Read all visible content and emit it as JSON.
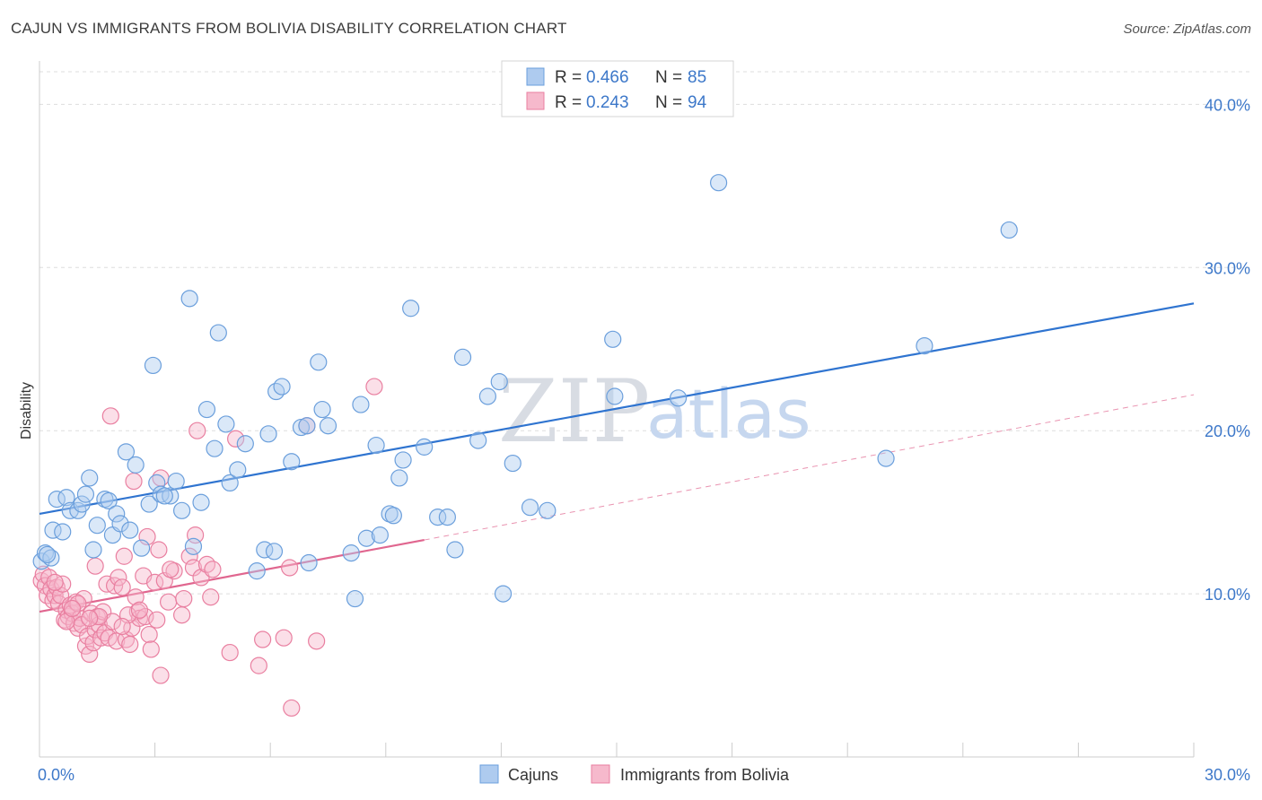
{
  "header": {
    "title": "CAJUN VS IMMIGRANTS FROM BOLIVIA DISABILITY CORRELATION CHART",
    "source": "Source: ZipAtlas.com"
  },
  "watermark": {
    "zip": "ZIP",
    "atlas": "atlas"
  },
  "colors": {
    "blue_fill": "#aecbef",
    "blue_stroke": "#6b9fdc",
    "blue_line": "#2f74d0",
    "pink_fill": "#f6b9cc",
    "pink_stroke": "#e97fa0",
    "pink_line": "#e0668f",
    "grid": "#dddddd",
    "tick_label": "#3d78c9"
  },
  "chart_data": {
    "type": "scatter",
    "ylabel": "Disability",
    "xlim": [
      0,
      30
    ],
    "ylim": [
      0,
      42
    ],
    "x_tick_labels": {
      "min": "0.0%",
      "max": "30.0%"
    },
    "y_ticks": [
      {
        "value": 10,
        "label": "10.0%"
      },
      {
        "value": 20,
        "label": "20.0%"
      },
      {
        "value": 30,
        "label": "30.0%"
      },
      {
        "value": 40,
        "label": "40.0%"
      }
    ],
    "grid": "horizontal dashed",
    "legend": {
      "placement": "top-center",
      "rows": [
        {
          "r_label": "R =",
          "r_value": "0.466",
          "n_label": "N =",
          "n_value": "85"
        },
        {
          "r_label": "R =",
          "r_value": "0.243",
          "n_label": "N =",
          "n_value": "94"
        }
      ]
    },
    "series": [
      {
        "name": "Cajuns",
        "trend": {
          "x0": 0,
          "y0": 14.9,
          "x1": 30,
          "y1": 27.8
        },
        "points": [
          [
            0.05,
            12.0
          ],
          [
            0.15,
            12.5
          ],
          [
            0.3,
            12.2
          ],
          [
            0.35,
            13.9
          ],
          [
            0.45,
            15.8
          ],
          [
            0.6,
            13.8
          ],
          [
            0.7,
            15.9
          ],
          [
            0.8,
            15.1
          ],
          [
            1.0,
            15.1
          ],
          [
            1.1,
            15.5
          ],
          [
            1.3,
            17.1
          ],
          [
            1.4,
            12.7
          ],
          [
            1.5,
            14.2
          ],
          [
            1.7,
            15.8
          ],
          [
            1.8,
            15.7
          ],
          [
            1.9,
            13.6
          ],
          [
            2.0,
            14.9
          ],
          [
            2.1,
            14.3
          ],
          [
            2.25,
            18.7
          ],
          [
            2.35,
            13.9
          ],
          [
            2.5,
            17.9
          ],
          [
            2.65,
            12.8
          ],
          [
            2.85,
            15.5
          ],
          [
            2.95,
            24.0
          ],
          [
            3.05,
            16.8
          ],
          [
            3.15,
            16.1
          ],
          [
            3.4,
            16.0
          ],
          [
            3.55,
            16.9
          ],
          [
            3.7,
            15.1
          ],
          [
            3.9,
            28.1
          ],
          [
            4.0,
            12.9
          ],
          [
            4.2,
            15.6
          ],
          [
            4.35,
            21.3
          ],
          [
            4.55,
            18.9
          ],
          [
            4.65,
            26.0
          ],
          [
            4.85,
            20.4
          ],
          [
            4.95,
            16.8
          ],
          [
            5.15,
            17.6
          ],
          [
            5.35,
            19.2
          ],
          [
            5.65,
            11.4
          ],
          [
            5.85,
            12.7
          ],
          [
            5.95,
            19.8
          ],
          [
            6.15,
            22.4
          ],
          [
            6.3,
            22.7
          ],
          [
            6.55,
            18.1
          ],
          [
            6.8,
            20.2
          ],
          [
            6.95,
            20.3
          ],
          [
            7.0,
            11.9
          ],
          [
            7.25,
            24.2
          ],
          [
            7.35,
            21.3
          ],
          [
            7.5,
            20.3
          ],
          [
            8.1,
            12.5
          ],
          [
            8.2,
            9.7
          ],
          [
            8.35,
            21.6
          ],
          [
            8.5,
            13.4
          ],
          [
            8.75,
            19.1
          ],
          [
            8.85,
            13.6
          ],
          [
            9.1,
            14.9
          ],
          [
            9.35,
            17.1
          ],
          [
            9.45,
            18.2
          ],
          [
            9.65,
            27.5
          ],
          [
            10.0,
            19.0
          ],
          [
            10.35,
            14.7
          ],
          [
            10.6,
            14.7
          ],
          [
            10.8,
            12.7
          ],
          [
            11.0,
            24.5
          ],
          [
            11.4,
            19.4
          ],
          [
            11.65,
            22.1
          ],
          [
            11.95,
            23.0
          ],
          [
            12.05,
            10.0
          ],
          [
            12.3,
            18.0
          ],
          [
            12.75,
            15.3
          ],
          [
            13.2,
            15.1
          ],
          [
            14.9,
            25.6
          ],
          [
            14.95,
            22.1
          ],
          [
            16.6,
            22.0
          ],
          [
            17.65,
            35.2
          ],
          [
            22.0,
            18.3
          ],
          [
            23.0,
            25.2
          ],
          [
            25.2,
            32.3
          ],
          [
            0.2,
            12.4
          ],
          [
            1.2,
            16.1
          ],
          [
            3.25,
            16.0
          ],
          [
            6.1,
            12.6
          ],
          [
            9.2,
            14.8
          ]
        ]
      },
      {
        "name": "Immigrants from Bolivia",
        "trend": {
          "x0": 0,
          "y0": 8.9,
          "x1": 10,
          "y1": 13.3,
          "x_dash_end": 30,
          "y_dash_end": 22.2
        },
        "points": [
          [
            0.05,
            10.8
          ],
          [
            0.1,
            11.2
          ],
          [
            0.15,
            10.5
          ],
          [
            0.2,
            9.9
          ],
          [
            0.25,
            11.0
          ],
          [
            0.3,
            10.3
          ],
          [
            0.35,
            9.6
          ],
          [
            0.4,
            9.9
          ],
          [
            0.45,
            10.4
          ],
          [
            0.5,
            9.4
          ],
          [
            0.55,
            9.9
          ],
          [
            0.6,
            10.6
          ],
          [
            0.65,
            8.4
          ],
          [
            0.7,
            9.0
          ],
          [
            0.75,
            8.6
          ],
          [
            0.8,
            9.3
          ],
          [
            0.85,
            8.8
          ],
          [
            0.9,
            8.2
          ],
          [
            0.95,
            9.5
          ],
          [
            1.0,
            7.9
          ],
          [
            1.05,
            8.5
          ],
          [
            1.1,
            8.1
          ],
          [
            1.15,
            9.7
          ],
          [
            1.2,
            6.8
          ],
          [
            1.25,
            7.4
          ],
          [
            1.3,
            6.3
          ],
          [
            1.35,
            8.8
          ],
          [
            1.4,
            7.0
          ],
          [
            1.45,
            7.8
          ],
          [
            1.5,
            8.6
          ],
          [
            1.55,
            8.1
          ],
          [
            1.6,
            7.3
          ],
          [
            1.65,
            8.9
          ],
          [
            1.7,
            7.6
          ],
          [
            1.75,
            10.6
          ],
          [
            1.8,
            7.3
          ],
          [
            1.85,
            20.9
          ],
          [
            1.9,
            8.3
          ],
          [
            1.95,
            10.5
          ],
          [
            2.0,
            7.1
          ],
          [
            2.05,
            11.0
          ],
          [
            2.15,
            10.4
          ],
          [
            2.2,
            12.3
          ],
          [
            2.25,
            7.2
          ],
          [
            2.35,
            6.9
          ],
          [
            2.4,
            7.9
          ],
          [
            2.45,
            16.9
          ],
          [
            2.5,
            9.8
          ],
          [
            2.55,
            8.9
          ],
          [
            2.6,
            8.5
          ],
          [
            2.7,
            11.1
          ],
          [
            2.75,
            8.6
          ],
          [
            2.8,
            13.5
          ],
          [
            2.85,
            7.5
          ],
          [
            2.9,
            6.6
          ],
          [
            3.0,
            10.7
          ],
          [
            3.05,
            8.4
          ],
          [
            3.1,
            12.7
          ],
          [
            3.15,
            17.1
          ],
          [
            3.25,
            10.8
          ],
          [
            3.35,
            9.5
          ],
          [
            3.5,
            11.4
          ],
          [
            3.7,
            8.7
          ],
          [
            3.75,
            9.7
          ],
          [
            3.9,
            12.3
          ],
          [
            4.0,
            11.6
          ],
          [
            4.05,
            13.6
          ],
          [
            4.1,
            20.0
          ],
          [
            4.2,
            11.0
          ],
          [
            4.35,
            11.8
          ],
          [
            4.45,
            9.8
          ],
          [
            4.5,
            11.5
          ],
          [
            4.95,
            6.4
          ],
          [
            5.1,
            19.5
          ],
          [
            5.7,
            5.6
          ],
          [
            5.8,
            7.2
          ],
          [
            6.35,
            7.3
          ],
          [
            6.55,
            3.0
          ],
          [
            6.5,
            11.6
          ],
          [
            6.95,
            20.3
          ],
          [
            7.2,
            7.1
          ],
          [
            8.7,
            22.7
          ],
          [
            3.15,
            5.0
          ],
          [
            1.55,
            8.6
          ],
          [
            0.7,
            8.3
          ],
          [
            1.0,
            9.4
          ],
          [
            2.3,
            8.7
          ],
          [
            0.4,
            10.7
          ],
          [
            1.3,
            8.5
          ],
          [
            2.6,
            9.0
          ],
          [
            1.45,
            11.7
          ],
          [
            0.85,
            9.1
          ],
          [
            3.4,
            11.5
          ],
          [
            2.15,
            8.0
          ]
        ]
      }
    ]
  },
  "bottom_legend": [
    {
      "label": "Cajuns"
    },
    {
      "label": "Immigrants from Bolivia"
    }
  ]
}
